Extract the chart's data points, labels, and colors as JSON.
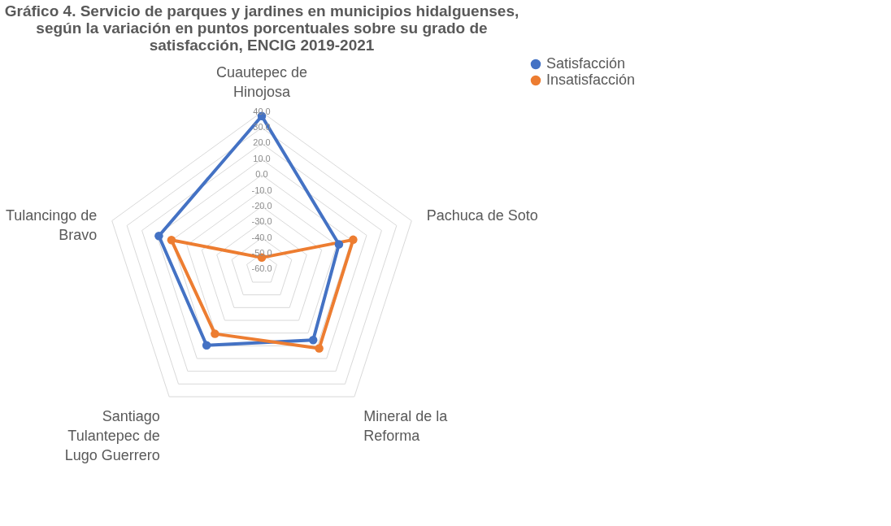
{
  "chart_data": {
    "type": "radar",
    "title": "Gráfico 4. Servicio de parques y jardines en municipios hidalguenses, según la variación en puntos porcentuales sobre su grado de satisfacción,  ENCIG 2019-2021",
    "categories": [
      "Cuautepec de Hinojosa",
      "Pachuca de Soto",
      "Mineral de la Reforma",
      "Santiago Tulantepec de Lugo Guerrero",
      "Tulancingo de Bravo"
    ],
    "series": [
      {
        "name": "Satisfacción",
        "color": "#4472c4",
        "values": [
          37.4,
          -8.5,
          -4.5,
          -0.4,
          8.7
        ]
      },
      {
        "name": "Insatisfacción",
        "color": "#ed7d31",
        "values": [
          -52.5,
          1.0,
          2.0,
          -9.4,
          0.3
        ]
      }
    ],
    "ylim": [
      -60,
      40
    ],
    "yticks": [
      {
        "value": 40,
        "label": "40.0"
      },
      {
        "value": 30,
        "label": "30.0"
      },
      {
        "value": 20,
        "label": "20.0"
      },
      {
        "value": 10,
        "label": "10.0"
      },
      {
        "value": 0,
        "label": "0.0"
      },
      {
        "value": -10,
        "label": "-10.0"
      },
      {
        "value": -20,
        "label": "-20.0"
      },
      {
        "value": -30,
        "label": "-30.0"
      },
      {
        "value": -40,
        "label": "-40.0"
      },
      {
        "value": -50,
        "label": "-50.0"
      },
      {
        "value": -60,
        "label": "-60.0"
      }
    ],
    "grid": true,
    "legend": "right",
    "marker": "circle",
    "line_style": "solid"
  }
}
